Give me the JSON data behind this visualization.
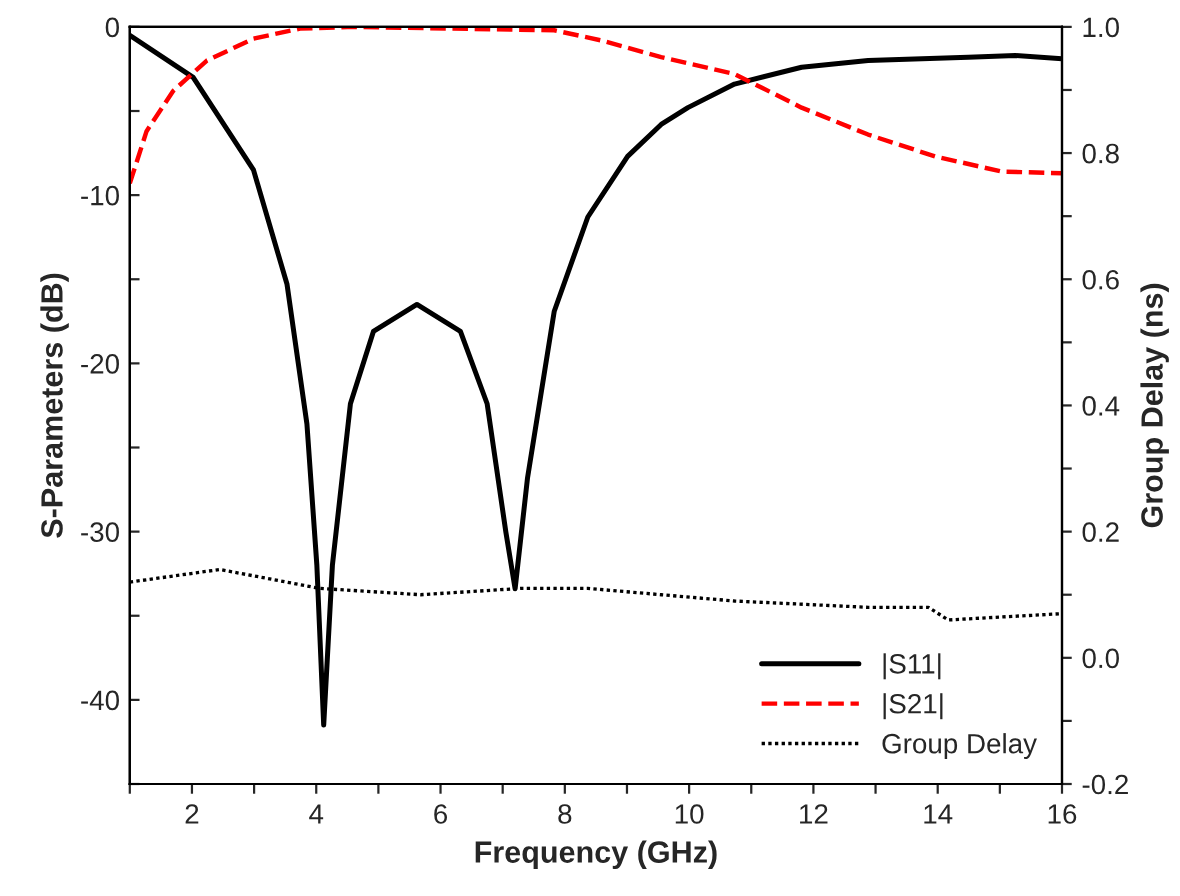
{
  "chart_data": {
    "type": "line",
    "xlabel": "Frequency (GHz)",
    "ylabel": "S-Parameters (dB)",
    "y2label": "Group Delay (ns)",
    "xlim": [
      1,
      16
    ],
    "xticks": [
      {
        "value": 1,
        "label": null
      },
      2,
      {
        "value": 3,
        "label": null
      },
      4,
      {
        "value": 5,
        "label": null
      },
      6,
      {
        "value": 7,
        "label": null
      },
      8,
      {
        "value": 9,
        "label": null
      },
      10,
      {
        "value": 11,
        "label": null
      },
      12,
      {
        "value": 13,
        "label": null
      },
      14,
      {
        "value": 15,
        "label": null
      },
      16
    ],
    "ylim": [
      -45,
      0
    ],
    "yticks": [
      {
        "value": -45,
        "label": null
      },
      -40,
      {
        "value": -35,
        "label": null
      },
      -30,
      {
        "value": -25,
        "label": null
      },
      -20,
      {
        "value": -15,
        "label": null
      },
      -10,
      {
        "value": -5,
        "label": null
      },
      0
    ],
    "y2lim": [
      -0.2,
      1.0
    ],
    "y2ticks": [
      {
        "value": -0.2,
        "label": "-0.2"
      },
      {
        "value": -0.1,
        "label": null
      },
      {
        "value": 0.0,
        "label": "0.0"
      },
      {
        "value": 0.1,
        "label": null
      },
      0.2,
      {
        "value": 0.3,
        "label": null
      },
      0.4,
      {
        "value": 0.5,
        "label": null
      },
      0.6,
      {
        "value": 0.7,
        "label": null
      },
      0.8,
      {
        "value": 0.9,
        "label": null
      },
      {
        "value": 1.0,
        "label": "1.0"
      }
    ],
    "grid": false,
    "legend": "bottom right",
    "series": [
      {
        "name": "|S11|",
        "color": "#000000",
        "line_style": "solid",
        "x": [
          1,
          2.02,
          2.99,
          3.53,
          3.85,
          4.01,
          4.12,
          4.26,
          4.55,
          4.92,
          5.62,
          6.32,
          6.75,
          7.05,
          7.2,
          7.4,
          7.83,
          8.37,
          9.01,
          9.55,
          9.98,
          10.73,
          11.81,
          12.88,
          14.49,
          15.25,
          16
        ],
        "values": [
          -0.5,
          -3.0,
          -8.5,
          -15.3,
          -23.6,
          -32,
          -41.5,
          -32,
          -22.4,
          -18.1,
          -16.5,
          -18.1,
          -22.4,
          -30,
          -33.4,
          -26.8,
          -16.9,
          -11.3,
          -7.7,
          -5.8,
          -4.8,
          -3.4,
          -2.4,
          -2.0,
          -1.8,
          -1.7,
          -1.9
        ]
      },
      {
        "name": "|S21|",
        "color": "#ff0000",
        "line_style": "dashed",
        "x": [
          1,
          1.27,
          1.7,
          2.24,
          2.99,
          3.74,
          4.6,
          6.2,
          7.83,
          8.58,
          9.55,
          10.73,
          11.81,
          12.88,
          13.96,
          15.03,
          16
        ],
        "values": [
          -9.3,
          -6.2,
          -3.8,
          -2.0,
          -0.7,
          -0.1,
          0,
          -0.1,
          -0.2,
          -0.8,
          -1.8,
          -2.8,
          -4.8,
          -6.4,
          -7.7,
          -8.6,
          -8.7
        ]
      },
      {
        "name": "Group Delay",
        "color": "#000000",
        "line_style": "dotted",
        "axis": "y2",
        "x": [
          1,
          2.45,
          4.06,
          5.68,
          7.29,
          8.37,
          9.55,
          10.73,
          12.88,
          13.85,
          14.17,
          16
        ],
        "values": [
          0.12,
          0.14,
          0.11,
          0.1,
          0.11,
          0.11,
          0.1,
          0.09,
          0.08,
          0.08,
          0.06,
          0.07
        ]
      }
    ]
  }
}
